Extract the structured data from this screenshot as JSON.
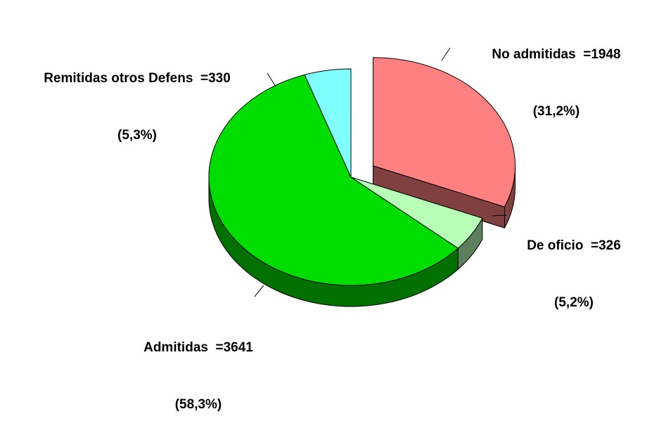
{
  "chart_data": {
    "type": "pie",
    "three_d": true,
    "title": "",
    "slices": [
      {
        "key": "no_admitidas",
        "name": "No admitidas",
        "value": 1948,
        "percent_label": "(31,2%)",
        "label_line1": "No admitidas  =1948",
        "exploded": true,
        "color": "#ff8080",
        "side_color": "#804040"
      },
      {
        "key": "de_oficio",
        "name": "De oficio",
        "value": 326,
        "percent_label": "(5,2%)",
        "label_line1": "De oficio  =326",
        "exploded": false,
        "color": "#b8ffb8",
        "side_color": "#5c805c"
      },
      {
        "key": "admitidas",
        "name": "Admitidas",
        "value": 3641,
        "percent_label": "(58,3%)",
        "label_line1": "Admitidas  =3641",
        "exploded": false,
        "color": "#00dd00",
        "side_color": "#007000"
      },
      {
        "key": "remitidas",
        "name": "Remitidas otros Defens",
        "value": 330,
        "percent_label": "(5,3%)",
        "label_line1": "Remitidas otros Defens  =330",
        "exploded": false,
        "color": "#80ffff",
        "side_color": "#408080"
      }
    ],
    "legend": "none"
  }
}
